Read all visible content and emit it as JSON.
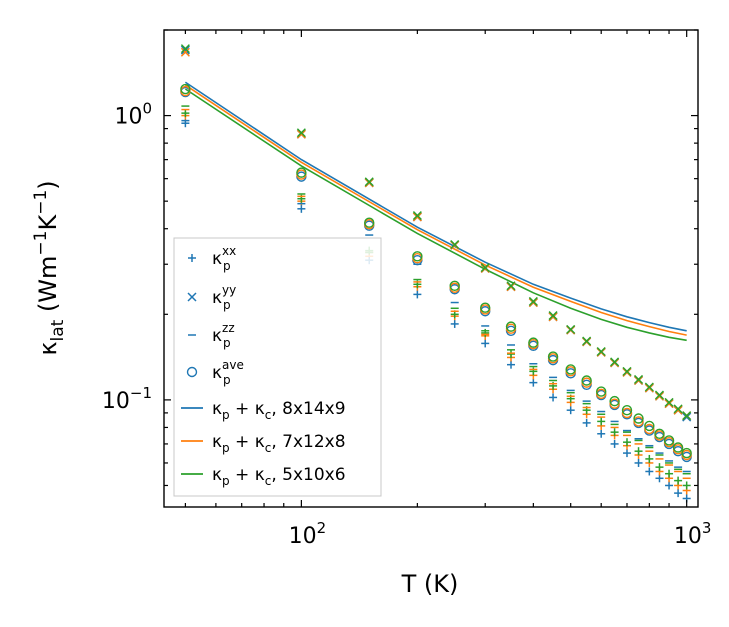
{
  "chart_data": {
    "type": "scatter",
    "title": "",
    "xlabel": "T (K)",
    "ylabel_parts": [
      "κ",
      "lat",
      " (Wm",
      "−1",
      "K",
      "−1",
      ")"
    ],
    "xscale": "log",
    "yscale": "log",
    "xlim": [
      44,
      1070
    ],
    "ylim": [
      0.042,
      2.0
    ],
    "x_major_ticks": [
      {
        "value": 100,
        "base": "10",
        "exp": "2"
      },
      {
        "value": 1000,
        "base": "10",
        "exp": "3"
      }
    ],
    "y_major_ticks": [
      {
        "value": 0.1,
        "base": "10",
        "exp": "−1"
      },
      {
        "value": 1.0,
        "base": "10",
        "exp": "0"
      }
    ],
    "legend_position": "center-left",
    "colors": {
      "blue": "#1f77b4",
      "orange": "#ff7f0e",
      "green": "#2ca02c"
    },
    "x": [
      50,
      100,
      150,
      200,
      250,
      300,
      350,
      400,
      450,
      500,
      550,
      600,
      650,
      700,
      750,
      800,
      850,
      900,
      950,
      1000
    ],
    "scatter_series": [
      {
        "name": "kp_xx_8x14x9",
        "marker": "+",
        "color": "#1f77b4",
        "values": [
          0.94,
          0.47,
          0.31,
          0.235,
          0.185,
          0.158,
          0.133,
          0.115,
          0.102,
          0.092,
          0.083,
          0.076,
          0.07,
          0.065,
          0.06,
          0.056,
          0.053,
          0.05,
          0.047,
          0.045
        ]
      },
      {
        "name": "kp_xx_7x12x8",
        "marker": "+",
        "color": "#ff7f0e",
        "values": [
          1.0,
          0.5,
          0.33,
          0.25,
          0.197,
          0.168,
          0.141,
          0.122,
          0.109,
          0.098,
          0.089,
          0.081,
          0.075,
          0.069,
          0.064,
          0.06,
          0.056,
          0.053,
          0.05,
          0.048
        ]
      },
      {
        "name": "kp_xx_5x10x6",
        "marker": "+",
        "color": "#2ca02c",
        "values": [
          1.02,
          0.51,
          0.335,
          0.255,
          0.2,
          0.172,
          0.145,
          0.126,
          0.112,
          0.101,
          0.092,
          0.084,
          0.077,
          0.071,
          0.066,
          0.062,
          0.058,
          0.055,
          0.052,
          0.05
        ]
      },
      {
        "name": "kp_yy_8x14x9",
        "marker": "x",
        "color": "#1f77b4",
        "values": [
          1.7,
          0.86,
          0.58,
          0.44,
          0.35,
          0.29,
          0.25,
          0.22,
          0.196,
          0.176,
          0.16,
          0.147,
          0.135,
          0.125,
          0.117,
          0.11,
          0.103,
          0.097,
          0.092,
          0.087
        ]
      },
      {
        "name": "kp_yy_7x12x8",
        "marker": "x",
        "color": "#ff7f0e",
        "values": [
          1.67,
          0.86,
          0.58,
          0.44,
          0.35,
          0.29,
          0.25,
          0.22,
          0.196,
          0.176,
          0.16,
          0.147,
          0.135,
          0.125,
          0.117,
          0.11,
          0.103,
          0.097,
          0.092,
          0.088
        ]
      },
      {
        "name": "kp_yy_5x10x6",
        "marker": "x",
        "color": "#2ca02c",
        "values": [
          1.72,
          0.87,
          0.585,
          0.445,
          0.352,
          0.292,
          0.252,
          0.222,
          0.198,
          0.177,
          0.161,
          0.148,
          0.136,
          0.126,
          0.118,
          0.111,
          0.104,
          0.098,
          0.093,
          0.088
        ]
      },
      {
        "name": "kp_zz_8x14x9",
        "marker": "_",
        "color": "#1f77b4",
        "values": [
          0.96,
          0.49,
          0.38,
          0.3,
          0.22,
          0.182,
          0.156,
          0.134,
          0.12,
          0.108,
          0.099,
          0.091,
          0.084,
          0.078,
          0.073,
          0.069,
          0.065,
          0.061,
          0.058,
          0.056
        ]
      },
      {
        "name": "kp_zz_7x12x8",
        "marker": "_",
        "color": "#ff7f0e",
        "values": [
          1.05,
          0.52,
          0.32,
          0.26,
          0.205,
          0.17,
          0.146,
          0.128,
          0.114,
          0.103,
          0.094,
          0.087,
          0.08,
          0.075,
          0.07,
          0.066,
          0.062,
          0.059,
          0.056,
          0.053
        ]
      },
      {
        "name": "kp_zz_5x10x6",
        "marker": "_",
        "color": "#2ca02c",
        "values": [
          1.08,
          0.53,
          0.33,
          0.265,
          0.21,
          0.175,
          0.15,
          0.131,
          0.117,
          0.106,
          0.097,
          0.089,
          0.082,
          0.077,
          0.072,
          0.068,
          0.064,
          0.06,
          0.057,
          0.055
        ]
      },
      {
        "name": "kp_ave_8x14x9",
        "marker": "o",
        "color": "#1f77b4",
        "values": [
          1.21,
          0.61,
          0.41,
          0.31,
          0.245,
          0.205,
          0.175,
          0.155,
          0.138,
          0.124,
          0.113,
          0.104,
          0.096,
          0.089,
          0.083,
          0.078,
          0.074,
          0.07,
          0.066,
          0.063
        ]
      },
      {
        "name": "kp_ave_7x12x8",
        "marker": "o",
        "color": "#ff7f0e",
        "values": [
          1.22,
          0.62,
          0.415,
          0.315,
          0.248,
          0.208,
          0.178,
          0.157,
          0.14,
          0.126,
          0.115,
          0.105,
          0.097,
          0.09,
          0.084,
          0.079,
          0.075,
          0.071,
          0.067,
          0.064
        ]
      },
      {
        "name": "kp_ave_5x10x6",
        "marker": "o",
        "color": "#2ca02c",
        "values": [
          1.24,
          0.63,
          0.42,
          0.32,
          0.252,
          0.211,
          0.181,
          0.159,
          0.142,
          0.128,
          0.117,
          0.107,
          0.099,
          0.092,
          0.086,
          0.081,
          0.076,
          0.072,
          0.068,
          0.065
        ]
      }
    ],
    "line_series": [
      {
        "name": "kp + kc, 8x14x9",
        "color": "#1f77b4",
        "x": [
          50,
          100,
          200,
          300,
          400,
          500,
          600,
          700,
          800,
          900,
          1000
        ],
        "values": [
          1.31,
          0.7,
          0.405,
          0.305,
          0.255,
          0.228,
          0.209,
          0.196,
          0.187,
          0.18,
          0.175
        ]
      },
      {
        "name": "kp + kc, 7x12x8",
        "color": "#ff7f0e",
        "x": [
          50,
          100,
          200,
          300,
          400,
          500,
          600,
          700,
          800,
          900,
          1000
        ],
        "values": [
          1.28,
          0.685,
          0.397,
          0.298,
          0.249,
          0.222,
          0.203,
          0.19,
          0.181,
          0.174,
          0.169
        ]
      },
      {
        "name": "kp + kc, 5x10x6",
        "color": "#2ca02c",
        "x": [
          50,
          100,
          200,
          300,
          400,
          500,
          600,
          700,
          800,
          900,
          1000
        ],
        "values": [
          1.24,
          0.665,
          0.385,
          0.288,
          0.238,
          0.21,
          0.192,
          0.18,
          0.172,
          0.166,
          0.162
        ]
      }
    ],
    "legend": [
      {
        "marker": "+",
        "color": "#1f77b4",
        "base": "κ",
        "sub": "p",
        "sup": "xx",
        "text": ""
      },
      {
        "marker": "x",
        "color": "#1f77b4",
        "base": "κ",
        "sub": "p",
        "sup": "yy",
        "text": ""
      },
      {
        "marker": "_",
        "color": "#1f77b4",
        "base": "κ",
        "sub": "p",
        "sup": "zz",
        "text": ""
      },
      {
        "marker": "o",
        "color": "#1f77b4",
        "base": "κ",
        "sub": "p",
        "sup": "ave",
        "text": ""
      },
      {
        "marker": "line",
        "color": "#1f77b4",
        "base": "κ",
        "sub": "p",
        "sup": "",
        "text": " + κ",
        "sub2": "c",
        "tail": ", 8x14x9"
      },
      {
        "marker": "line",
        "color": "#ff7f0e",
        "base": "κ",
        "sub": "p",
        "sup": "",
        "text": " + κ",
        "sub2": "c",
        "tail": ", 7x12x8"
      },
      {
        "marker": "line",
        "color": "#2ca02c",
        "base": "κ",
        "sub": "p",
        "sup": "",
        "text": " + κ",
        "sub2": "c",
        "tail": ", 5x10x6"
      }
    ]
  }
}
